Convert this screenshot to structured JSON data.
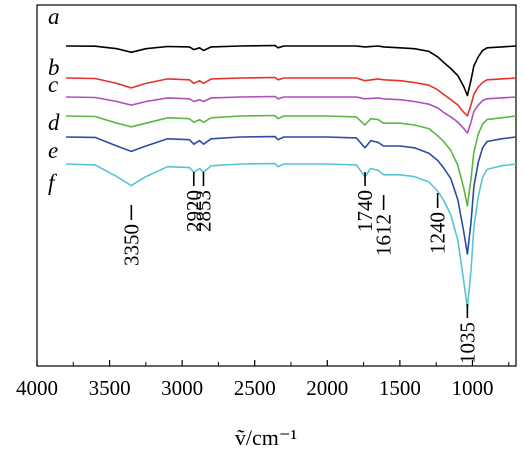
{
  "chart_data": {
    "type": "line",
    "title": "",
    "xlabel": "ṽ/cm⁻¹",
    "ylabel": "",
    "x_axis_reversed": true,
    "xlim": [
      4000,
      700
    ],
    "xticks": [
      4000,
      3500,
      3000,
      2500,
      2000,
      1500,
      1000
    ],
    "grid": false,
    "legend": "none (curves labelled inline at left)",
    "series": [
      {
        "name": "a",
        "color": "#000000",
        "points": [
          [
            3800,
            0.0
          ],
          [
            3600,
            -0.2
          ],
          [
            3450,
            -3
          ],
          [
            3350,
            -7
          ],
          [
            3250,
            -3
          ],
          [
            3100,
            -0.5
          ],
          [
            2950,
            -1
          ],
          [
            2920,
            -4
          ],
          [
            2880,
            -2
          ],
          [
            2853,
            -5
          ],
          [
            2800,
            -1
          ],
          [
            2600,
            0
          ],
          [
            2360,
            0.5
          ],
          [
            2340,
            -2
          ],
          [
            2300,
            0
          ],
          [
            2000,
            0
          ],
          [
            1800,
            0
          ],
          [
            1740,
            -1
          ],
          [
            1650,
            0
          ],
          [
            1612,
            -1
          ],
          [
            1500,
            -2
          ],
          [
            1400,
            -3
          ],
          [
            1300,
            -6
          ],
          [
            1240,
            -12
          ],
          [
            1200,
            -18
          ],
          [
            1150,
            -25
          ],
          [
            1100,
            -33
          ],
          [
            1060,
            -45
          ],
          [
            1035,
            -55
          ],
          [
            1010,
            -38
          ],
          [
            990,
            -22
          ],
          [
            960,
            -12
          ],
          [
            930,
            -5
          ],
          [
            900,
            -2
          ],
          [
            800,
            -1
          ],
          [
            700,
            0
          ]
        ]
      },
      {
        "name": "b",
        "color": "#e8302a",
        "points": [
          [
            3800,
            0.0
          ],
          [
            3600,
            -0.5
          ],
          [
            3450,
            -6
          ],
          [
            3350,
            -11
          ],
          [
            3250,
            -6
          ],
          [
            3100,
            -1
          ],
          [
            2950,
            -2
          ],
          [
            2920,
            -6
          ],
          [
            2880,
            -3
          ],
          [
            2853,
            -6
          ],
          [
            2800,
            -1
          ],
          [
            2600,
            0
          ],
          [
            2360,
            0.5
          ],
          [
            2340,
            -2
          ],
          [
            2300,
            0
          ],
          [
            2000,
            0
          ],
          [
            1800,
            0
          ],
          [
            1740,
            -3
          ],
          [
            1650,
            -1
          ],
          [
            1612,
            -2
          ],
          [
            1500,
            -3
          ],
          [
            1400,
            -5
          ],
          [
            1300,
            -8
          ],
          [
            1240,
            -13
          ],
          [
            1200,
            -18
          ],
          [
            1150,
            -24
          ],
          [
            1100,
            -30
          ],
          [
            1060,
            -38
          ],
          [
            1035,
            -42
          ],
          [
            1010,
            -30
          ],
          [
            990,
            -18
          ],
          [
            960,
            -10
          ],
          [
            930,
            -5
          ],
          [
            900,
            -2
          ],
          [
            800,
            -1
          ],
          [
            700,
            0
          ]
        ]
      },
      {
        "name": "c",
        "color": "#b04fbb",
        "points": [
          [
            3800,
            0.0
          ],
          [
            3600,
            -0.5
          ],
          [
            3450,
            -5
          ],
          [
            3350,
            -9
          ],
          [
            3250,
            -5
          ],
          [
            3100,
            -1
          ],
          [
            2950,
            -2
          ],
          [
            2920,
            -5
          ],
          [
            2880,
            -3
          ],
          [
            2853,
            -5
          ],
          [
            2800,
            -1
          ],
          [
            2600,
            0
          ],
          [
            2360,
            0.5
          ],
          [
            2340,
            -2
          ],
          [
            2300,
            0
          ],
          [
            2000,
            0
          ],
          [
            1800,
            0
          ],
          [
            1740,
            -2
          ],
          [
            1650,
            -1
          ],
          [
            1612,
            -2
          ],
          [
            1500,
            -3
          ],
          [
            1400,
            -5
          ],
          [
            1300,
            -8
          ],
          [
            1240,
            -12
          ],
          [
            1200,
            -17
          ],
          [
            1150,
            -22
          ],
          [
            1100,
            -28
          ],
          [
            1060,
            -35
          ],
          [
            1035,
            -40
          ],
          [
            1010,
            -28
          ],
          [
            990,
            -16
          ],
          [
            960,
            -9
          ],
          [
            930,
            -4
          ],
          [
            900,
            -2
          ],
          [
            800,
            -1
          ],
          [
            700,
            0
          ]
        ]
      },
      {
        "name": "d",
        "color": "#5db544",
        "points": [
          [
            3800,
            0.0
          ],
          [
            3600,
            -0.5
          ],
          [
            3450,
            -8
          ],
          [
            3350,
            -12
          ],
          [
            3250,
            -8
          ],
          [
            3100,
            -2
          ],
          [
            2950,
            -3
          ],
          [
            2920,
            -7
          ],
          [
            2880,
            -4
          ],
          [
            2853,
            -7
          ],
          [
            2800,
            -2
          ],
          [
            2600,
            0
          ],
          [
            2360,
            0.5
          ],
          [
            2340,
            -3
          ],
          [
            2300,
            0
          ],
          [
            2000,
            0
          ],
          [
            1800,
            -1
          ],
          [
            1740,
            -10
          ],
          [
            1700,
            -3
          ],
          [
            1650,
            -4
          ],
          [
            1612,
            -8
          ],
          [
            1500,
            -8
          ],
          [
            1400,
            -10
          ],
          [
            1300,
            -14
          ],
          [
            1240,
            -22
          ],
          [
            1200,
            -28
          ],
          [
            1150,
            -38
          ],
          [
            1100,
            -55
          ],
          [
            1060,
            -80
          ],
          [
            1035,
            -100
          ],
          [
            1010,
            -70
          ],
          [
            990,
            -40
          ],
          [
            960,
            -20
          ],
          [
            930,
            -9
          ],
          [
            900,
            -4
          ],
          [
            800,
            -2
          ],
          [
            700,
            0
          ]
        ]
      },
      {
        "name": "e",
        "color": "#2b4ca3",
        "points": [
          [
            3800,
            0.0
          ],
          [
            3600,
            -0.5
          ],
          [
            3450,
            -10
          ],
          [
            3350,
            -16
          ],
          [
            3250,
            -10
          ],
          [
            3100,
            -2
          ],
          [
            2950,
            -3
          ],
          [
            2920,
            -8
          ],
          [
            2880,
            -4
          ],
          [
            2853,
            -8
          ],
          [
            2800,
            -2
          ],
          [
            2600,
            0
          ],
          [
            2360,
            0.5
          ],
          [
            2340,
            -3
          ],
          [
            2300,
            0
          ],
          [
            2000,
            0
          ],
          [
            1800,
            -1
          ],
          [
            1740,
            -12
          ],
          [
            1700,
            -4
          ],
          [
            1650,
            -6
          ],
          [
            1612,
            -10
          ],
          [
            1500,
            -10
          ],
          [
            1400,
            -12
          ],
          [
            1300,
            -18
          ],
          [
            1240,
            -26
          ],
          [
            1200,
            -34
          ],
          [
            1150,
            -46
          ],
          [
            1100,
            -70
          ],
          [
            1060,
            -105
          ],
          [
            1035,
            -130
          ],
          [
            1010,
            -95
          ],
          [
            990,
            -55
          ],
          [
            960,
            -28
          ],
          [
            930,
            -12
          ],
          [
            900,
            -5
          ],
          [
            800,
            -2
          ],
          [
            700,
            0
          ]
        ]
      },
      {
        "name": "f",
        "color": "#57c5d1",
        "points": [
          [
            3800,
            0.0
          ],
          [
            3600,
            -1
          ],
          [
            3450,
            -14
          ],
          [
            3350,
            -24
          ],
          [
            3250,
            -14
          ],
          [
            3100,
            -3
          ],
          [
            2950,
            -4
          ],
          [
            2920,
            -9
          ],
          [
            2880,
            -5
          ],
          [
            2853,
            -9
          ],
          [
            2800,
            -2
          ],
          [
            2600,
            0
          ],
          [
            2360,
            0.5
          ],
          [
            2340,
            -3
          ],
          [
            2300,
            0
          ],
          [
            2000,
            0
          ],
          [
            1800,
            -1
          ],
          [
            1740,
            -14
          ],
          [
            1700,
            -5
          ],
          [
            1650,
            -7
          ],
          [
            1612,
            -12
          ],
          [
            1500,
            -12
          ],
          [
            1400,
            -14
          ],
          [
            1300,
            -20
          ],
          [
            1240,
            -30
          ],
          [
            1200,
            -40
          ],
          [
            1150,
            -56
          ],
          [
            1100,
            -85
          ],
          [
            1060,
            -130
          ],
          [
            1035,
            -160
          ],
          [
            1010,
            -118
          ],
          [
            990,
            -70
          ],
          [
            960,
            -36
          ],
          [
            930,
            -15
          ],
          [
            900,
            -6
          ],
          [
            800,
            -2
          ],
          [
            700,
            0
          ]
        ]
      }
    ],
    "annotations": [
      "3350",
      "2920",
      "2853",
      "1740",
      "1612",
      "1240",
      "1035"
    ]
  }
}
